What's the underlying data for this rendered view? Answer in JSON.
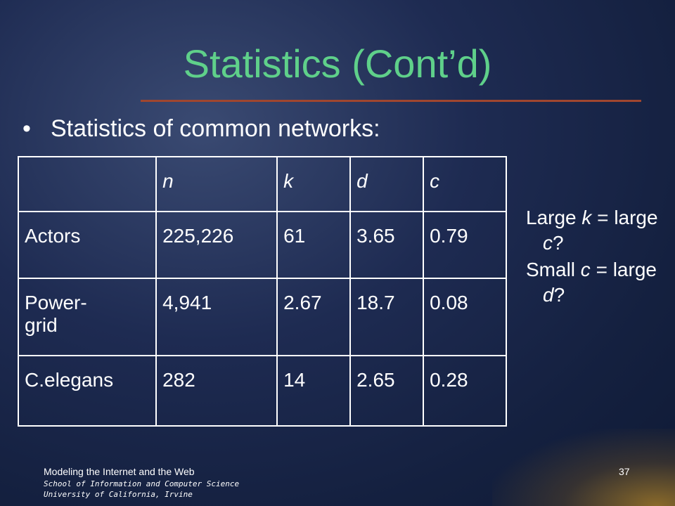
{
  "title": "Statistics (Cont’d)",
  "bullet": "Statistics of common networks:",
  "table": {
    "header": [
      "n",
      "k",
      "d",
      "c"
    ],
    "rows": [
      [
        "Actors",
        "225,226",
        "61",
        "3.65",
        "0.79"
      ],
      [
        "Power-grid",
        "4,941",
        "2.67",
        "18.7",
        "0.08"
      ],
      [
        "C.elegans",
        "282",
        "14",
        "2.65",
        "0.28"
      ]
    ]
  },
  "notes": [
    [
      "Large ",
      "k",
      " = large ",
      "c",
      "?"
    ],
    [
      "Small ",
      "c",
      " = large ",
      "d",
      "?"
    ]
  ],
  "footer": {
    "course": "Modeling the Internet and the Web",
    "school": "School of Information and Computer Science",
    "university": "University of California, Irvine",
    "page": "37"
  }
}
